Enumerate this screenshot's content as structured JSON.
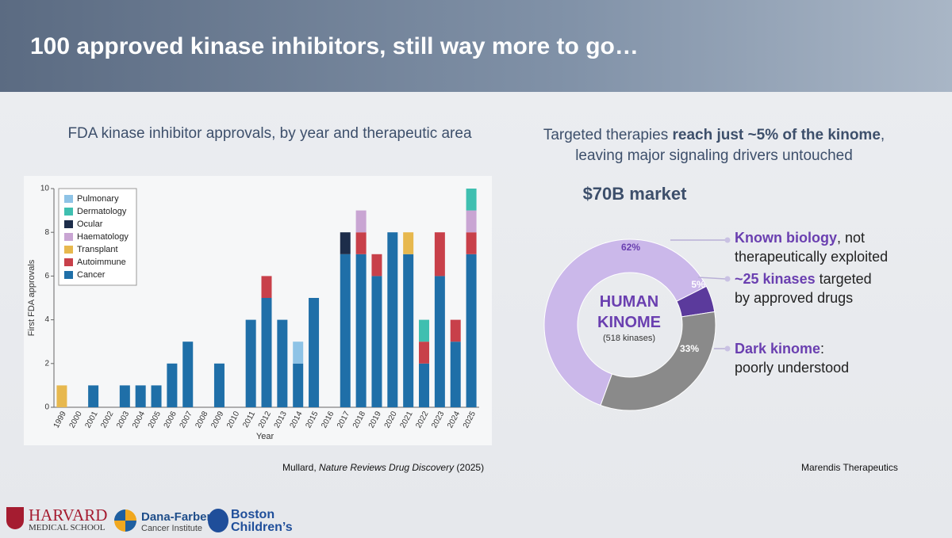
{
  "header": {
    "title": "100 approved kinase inhibitors, still way more to go…"
  },
  "chart_data": [
    {
      "type": "bar",
      "stacked": true,
      "title": "FDA kinase inhibitor approvals, by year and therapeutic area",
      "ylabel": "First FDA approvals",
      "xlabel": "Year",
      "categories": [
        "1999",
        "2000",
        "2001",
        "2002",
        "2003",
        "2004",
        "2005",
        "2006",
        "2007",
        "2008",
        "2009",
        "2010",
        "2011",
        "2012",
        "2013",
        "2014",
        "2015",
        "2016",
        "2017",
        "2018",
        "2019",
        "2020",
        "2021",
        "2022",
        "2023",
        "2024",
        "2025"
      ],
      "series": [
        {
          "name": "Cancer",
          "color": "#1f6fa8",
          "values": [
            0,
            0,
            1,
            0,
            1,
            1,
            1,
            2,
            3,
            0,
            2,
            0,
            4,
            5,
            4,
            2,
            5,
            0,
            7,
            7,
            6,
            8,
            7,
            2,
            6,
            3,
            7
          ]
        },
        {
          "name": "Autoimmune",
          "color": "#c8404a",
          "values": [
            0,
            0,
            0,
            0,
            0,
            0,
            0,
            0,
            0,
            0,
            0,
            0,
            0,
            1,
            0,
            0,
            0,
            0,
            0,
            1,
            1,
            0,
            0,
            1,
            2,
            1,
            1
          ]
        },
        {
          "name": "Transplant",
          "color": "#e7b84e",
          "values": [
            1,
            0,
            0,
            0,
            0,
            0,
            0,
            0,
            0,
            0,
            0,
            0,
            0,
            0,
            0,
            0,
            0,
            0,
            0,
            0,
            0,
            0,
            1,
            0,
            0,
            0,
            0
          ]
        },
        {
          "name": "Haematology",
          "color": "#c9a5d3",
          "values": [
            0,
            0,
            0,
            0,
            0,
            0,
            0,
            0,
            0,
            0,
            0,
            0,
            0,
            0,
            0,
            0,
            0,
            0,
            0,
            1,
            0,
            0,
            0,
            0,
            0,
            0,
            1
          ]
        },
        {
          "name": "Ocular",
          "color": "#1d2d4a",
          "values": [
            0,
            0,
            0,
            0,
            0,
            0,
            0,
            0,
            0,
            0,
            0,
            0,
            0,
            0,
            0,
            0,
            0,
            0,
            1,
            0,
            0,
            0,
            0,
            0,
            0,
            0,
            0
          ]
        },
        {
          "name": "Dermatology",
          "color": "#3fbfb0",
          "values": [
            0,
            0,
            0,
            0,
            0,
            0,
            0,
            0,
            0,
            0,
            0,
            0,
            0,
            0,
            0,
            0,
            0,
            0,
            0,
            0,
            0,
            0,
            0,
            1,
            0,
            0,
            1
          ]
        },
        {
          "name": "Pulmonary",
          "color": "#8ec3e6",
          "values": [
            0,
            0,
            0,
            0,
            0,
            0,
            0,
            0,
            0,
            0,
            0,
            0,
            0,
            0,
            0,
            1,
            0,
            0,
            0,
            0,
            0,
            0,
            0,
            0,
            0,
            0,
            0
          ]
        }
      ],
      "ylim": [
        0,
        10
      ],
      "yticks": [
        0,
        2,
        4,
        6,
        8,
        10
      ],
      "grid": false,
      "legend": "upper-left",
      "source": [
        "Mullard, ",
        "Nature Reviews Drug Discovery",
        " (2025)"
      ]
    },
    {
      "type": "pie",
      "donut": true,
      "title_parts": [
        "Targeted therapies ",
        "reach just ~5% of the kinome",
        ",",
        "leaving major signaling drivers untouched"
      ],
      "subtitle": "$70B market",
      "values": [
        62,
        5,
        33
      ],
      "value_labels": [
        "62%",
        "5%",
        "33%"
      ],
      "colors": [
        "#cbb8ea",
        "#5b3a9c",
        "#8a8a8a"
      ],
      "center_label": "HUMAN KINOME",
      "center_sublabel": "(518 kinases)",
      "annotations": [
        {
          "emphasis": "Known biology",
          "tail": ", not",
          "line2": "therapeutically exploited"
        },
        {
          "emphasis": "~25 kinases",
          "tail": " targeted",
          "line2": "by approved drugs"
        },
        {
          "emphasis": "Dark kinome",
          "tail": ":",
          "line2": "poorly understood"
        }
      ],
      "source": "Marendis Therapeutics"
    }
  ],
  "logos": {
    "harvard": [
      "HARVARD",
      "MEDICAL SCHOOL"
    ],
    "dana_farber": [
      "Dana-Farber",
      "Cancer Institute"
    ],
    "boston": [
      "Boston",
      "Children’s"
    ]
  }
}
